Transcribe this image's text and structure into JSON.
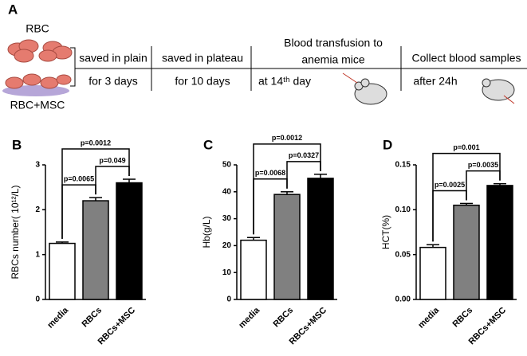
{
  "panel_a": {
    "label": "A",
    "rbc": "RBC",
    "rbc_msc": "RBC+MSC",
    "steps": [
      {
        "top": "saved in plain",
        "bottom": "for 3 days"
      },
      {
        "top": "saved in plateau",
        "bottom": "for 10 days"
      },
      {
        "top": "Blood transfusion to",
        "top2": "anemia  mice",
        "bottom": "at 14ᵗʰ day"
      },
      {
        "top": "Collect blood samples",
        "bottom": "after 24h"
      }
    ]
  },
  "chart_data": [
    {
      "type": "bar",
      "label": "B",
      "y_label": "RBCs number( 10¹²/L)",
      "categories": [
        "media",
        "RBCs",
        "RBCs+MSC"
      ],
      "values": [
        1.25,
        2.2,
        2.6
      ],
      "errors": [
        0.03,
        0.07,
        0.08
      ],
      "colors": [
        "#ffffff",
        "#808080",
        "#000000"
      ],
      "ylim": [
        0,
        3
      ],
      "yticks": [
        0,
        1,
        2,
        3
      ],
      "annotations": [
        "p=0.0065",
        "p=0.049",
        "p=0.0012"
      ]
    },
    {
      "type": "bar",
      "label": "C",
      "y_label": "Hb(g/L)",
      "categories": [
        "media",
        "RBCs",
        "RBCs+MSC"
      ],
      "values": [
        22,
        39,
        45
      ],
      "errors": [
        1,
        1,
        1.5
      ],
      "colors": [
        "#ffffff",
        "#808080",
        "#000000"
      ],
      "ylim": [
        0,
        50
      ],
      "yticks": [
        0,
        10,
        20,
        30,
        40,
        50
      ],
      "annotations": [
        "p=0.0068",
        "p=0.0327",
        "p=0.0012"
      ]
    },
    {
      "type": "bar",
      "label": "D",
      "y_label": "HCT(%)",
      "categories": [
        "media",
        "RBCs",
        "RBCs+MSC"
      ],
      "values": [
        0.058,
        0.105,
        0.127
      ],
      "errors": [
        0.003,
        0.002,
        0.002
      ],
      "colors": [
        "#ffffff",
        "#808080",
        "#000000"
      ],
      "ylim": [
        0,
        0.15
      ],
      "yticks": [
        {
          "value": 0,
          "label": "0.00"
        },
        {
          "value": 0.05,
          "label": "0.05"
        },
        {
          "value": 0.1,
          "label": "0.10"
        },
        {
          "value": 0.15,
          "label": "0.15"
        }
      ],
      "annotations": [
        "p=0.0025",
        "p=0.0035",
        "p=0.001"
      ]
    }
  ]
}
